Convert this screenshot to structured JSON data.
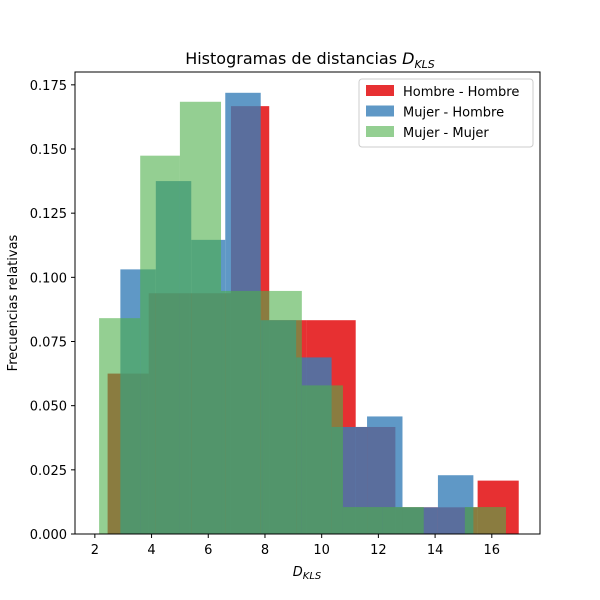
{
  "chart_data": {
    "type": "bar",
    "title_prefix": "Histogramas de distancias ",
    "title_symbol": "D",
    "title_subscript": "KLS",
    "xlabel_symbol": "D",
    "xlabel_subscript": "KLS",
    "ylabel": "Frecuencias relativas",
    "xlim": [
      1.3,
      17.7
    ],
    "ylim": [
      0,
      0.18
    ],
    "xticks": [
      2,
      4,
      6,
      8,
      10,
      12,
      14,
      16
    ],
    "yticks": [
      0.0,
      0.025,
      0.05,
      0.075,
      0.1,
      0.125,
      0.15,
      0.175
    ],
    "ytick_labels": [
      "0.000",
      "0.025",
      "0.050",
      "0.075",
      "0.100",
      "0.125",
      "0.150",
      "0.175"
    ],
    "xtick_labels": [
      "2",
      "4",
      "6",
      "8",
      "10",
      "12",
      "14",
      "16"
    ],
    "grid": false,
    "legend_position": "top-right",
    "series": [
      {
        "name": "Hombre - Hombre",
        "color": "#e41a1c",
        "bins": [
          {
            "x0": 2.45,
            "x1": 3.9,
            "value": 0.0625
          },
          {
            "x0": 3.9,
            "x1": 5.35,
            "value": 0.0938
          },
          {
            "x0": 5.35,
            "x1": 6.8,
            "value": 0.0938
          },
          {
            "x0": 6.8,
            "x1": 8.15,
            "value": 0.1667
          },
          {
            "x0": 8.15,
            "x1": 9.45,
            "value": 0.0833
          },
          {
            "x0": 9.45,
            "x1": 11.2,
            "value": 0.0833
          },
          {
            "x0": 11.2,
            "x1": 12.6,
            "value": 0.0417
          },
          {
            "x0": 12.6,
            "x1": 14.1,
            "value": 0.0104
          },
          {
            "x0": 14.1,
            "x1": 15.5,
            "value": 0.0104
          },
          {
            "x0": 15.5,
            "x1": 16.95,
            "value": 0.0208
          }
        ]
      },
      {
        "name": "Mujer - Hombre",
        "color": "#377eb8",
        "bins": [
          {
            "x0": 2.9,
            "x1": 4.15,
            "value": 0.1031
          },
          {
            "x0": 4.15,
            "x1": 5.4,
            "value": 0.1375
          },
          {
            "x0": 5.4,
            "x1": 6.6,
            "value": 0.1146
          },
          {
            "x0": 6.6,
            "x1": 7.85,
            "value": 0.1719
          },
          {
            "x0": 7.85,
            "x1": 9.1,
            "value": 0.0833
          },
          {
            "x0": 9.1,
            "x1": 10.35,
            "value": 0.0688
          },
          {
            "x0": 10.35,
            "x1": 11.6,
            "value": 0.0417
          },
          {
            "x0": 11.6,
            "x1": 12.85,
            "value": 0.0458
          },
          {
            "x0": 12.85,
            "x1": 14.1,
            "value": 0.0104
          },
          {
            "x0": 14.1,
            "x1": 15.35,
            "value": 0.0229
          }
        ]
      },
      {
        "name": "Mujer - Mujer",
        "color": "#4daf4a",
        "bins": [
          {
            "x0": 2.15,
            "x1": 3.6,
            "value": 0.0841
          },
          {
            "x0": 3.6,
            "x1": 5.0,
            "value": 0.1474
          },
          {
            "x0": 5.0,
            "x1": 6.45,
            "value": 0.1684
          },
          {
            "x0": 6.45,
            "x1": 7.9,
            "value": 0.0947
          },
          {
            "x0": 7.9,
            "x1": 9.3,
            "value": 0.0947
          },
          {
            "x0": 9.3,
            "x1": 10.75,
            "value": 0.0579
          },
          {
            "x0": 10.75,
            "x1": 12.15,
            "value": 0.0105
          },
          {
            "x0": 12.15,
            "x1": 13.6,
            "value": 0.0105
          },
          {
            "x0": 13.6,
            "x1": 15.05,
            "value": 0.0
          },
          {
            "x0": 15.05,
            "x1": 16.5,
            "value": 0.0105
          }
        ]
      }
    ]
  }
}
